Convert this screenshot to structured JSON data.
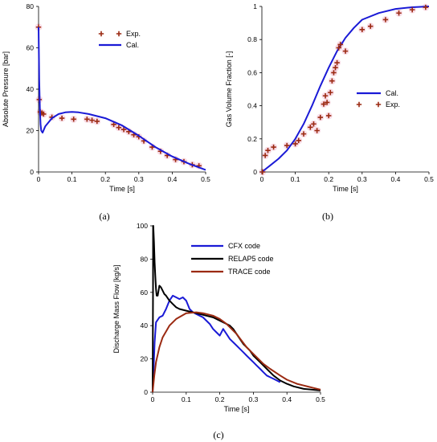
{
  "colors": {
    "cal": "#1a1ad6",
    "exp": "#9b2a12",
    "cfx": "#1a1ad6",
    "relap5": "#000000",
    "trace": "#9b2a12",
    "shade": "#f2bfd2"
  },
  "chart_data": [
    {
      "type": "line",
      "panel": "(a)",
      "xlabel": "Time [s]",
      "ylabel": "Absolute Pressure [bar]",
      "xlim": [
        0,
        0.5
      ],
      "ylim": [
        0,
        80
      ],
      "xticks": [
        0,
        0.1,
        0.2,
        0.3,
        0.4,
        0.5
      ],
      "yticks": [
        0,
        20,
        40,
        60,
        80
      ],
      "legend_position": "top-right",
      "series": [
        {
          "name": "Exp.",
          "kind": "markers",
          "x": [
            0.0,
            0.002,
            0.005,
            0.01,
            0.015,
            0.04,
            0.07,
            0.105,
            0.145,
            0.16,
            0.175,
            0.225,
            0.24,
            0.255,
            0.27,
            0.285,
            0.3,
            0.315,
            0.34,
            0.365,
            0.385,
            0.41,
            0.435,
            0.46,
            0.48
          ],
          "y": [
            70,
            35,
            29,
            28.5,
            28,
            26.5,
            26,
            25.5,
            25.5,
            25,
            24.5,
            23,
            21.5,
            20.5,
            19.5,
            18,
            17,
            15,
            12,
            10,
            8,
            6,
            5,
            3.5,
            3
          ]
        },
        {
          "name": "Cal.",
          "kind": "line",
          "x": [
            0.0,
            0.002,
            0.004,
            0.006,
            0.008,
            0.012,
            0.02,
            0.04,
            0.06,
            0.08,
            0.1,
            0.12,
            0.15,
            0.2,
            0.25,
            0.3,
            0.35,
            0.4,
            0.45,
            0.5
          ],
          "y": [
            70,
            45,
            30,
            23,
            20,
            19,
            22,
            26,
            28,
            28.8,
            29,
            28.8,
            28,
            26,
            22.5,
            17.5,
            12,
            7.5,
            4,
            1
          ]
        }
      ]
    },
    {
      "type": "line",
      "panel": "(b)",
      "xlabel": "Time [s]",
      "ylabel": "Gas Volume Fraction [-]",
      "xlim": [
        0,
        0.5
      ],
      "ylim": [
        0,
        1
      ],
      "xticks": [
        0,
        0.1,
        0.2,
        0.3,
        0.4,
        0.5
      ],
      "yticks": [
        0,
        0.2,
        0.4,
        0.6,
        0.8,
        1
      ],
      "legend_position": "middle-right",
      "series": [
        {
          "name": "Cal.",
          "kind": "line",
          "x": [
            0.0,
            0.025,
            0.05,
            0.075,
            0.1,
            0.125,
            0.15,
            0.175,
            0.2,
            0.225,
            0.25,
            0.275,
            0.3,
            0.35,
            0.4,
            0.45,
            0.5
          ],
          "y": [
            0.0,
            0.04,
            0.08,
            0.13,
            0.2,
            0.29,
            0.4,
            0.52,
            0.63,
            0.73,
            0.81,
            0.87,
            0.92,
            0.96,
            0.985,
            0.995,
            1.0
          ]
        },
        {
          "name": "Exp.",
          "kind": "markers",
          "x": [
            0.002,
            0.01,
            0.018,
            0.035,
            0.075,
            0.1,
            0.11,
            0.125,
            0.145,
            0.155,
            0.165,
            0.175,
            0.185,
            0.19,
            0.195,
            0.2,
            0.205,
            0.21,
            0.215,
            0.22,
            0.225,
            0.23,
            0.235,
            0.25,
            0.3,
            0.325,
            0.37,
            0.41,
            0.45,
            0.49
          ],
          "y": [
            0.0,
            0.1,
            0.13,
            0.15,
            0.16,
            0.17,
            0.19,
            0.23,
            0.27,
            0.29,
            0.25,
            0.33,
            0.41,
            0.46,
            0.42,
            0.34,
            0.48,
            0.55,
            0.6,
            0.63,
            0.66,
            0.75,
            0.77,
            0.73,
            0.86,
            0.88,
            0.92,
            0.96,
            0.98,
            0.995
          ]
        }
      ]
    },
    {
      "type": "line",
      "panel": "(c)",
      "xlabel": "Time [s]",
      "ylabel": "Discharge Mass Flow [kg/s]",
      "xlim": [
        0,
        0.5
      ],
      "ylim": [
        0,
        100
      ],
      "xticks": [
        0,
        0.1,
        0.2,
        0.3,
        0.4,
        0.5
      ],
      "yticks": [
        0,
        20,
        40,
        60,
        80,
        100
      ],
      "legend_position": "top-right",
      "series": [
        {
          "name": "CFX code",
          "x": [
            0.0,
            0.003,
            0.006,
            0.01,
            0.02,
            0.03,
            0.04,
            0.05,
            0.06,
            0.07,
            0.08,
            0.09,
            0.1,
            0.11,
            0.12,
            0.13,
            0.14,
            0.15,
            0.16,
            0.17,
            0.18,
            0.19,
            0.2,
            0.21,
            0.22,
            0.23,
            0.24,
            0.25,
            0.26,
            0.27,
            0.28,
            0.29,
            0.3,
            0.31,
            0.32,
            0.33,
            0.34,
            0.35,
            0.36,
            0.37,
            0.38
          ],
          "y": [
            0,
            15,
            30,
            42,
            45,
            46,
            50,
            55,
            58,
            57,
            56,
            57,
            55,
            50,
            48,
            47,
            46,
            45,
            43,
            41,
            38,
            36,
            34,
            38,
            35,
            32,
            30,
            28,
            26,
            24,
            22,
            20,
            18,
            16,
            14,
            12,
            10,
            9,
            8,
            7,
            6
          ]
        },
        {
          "name": "RELAP5 code",
          "x": [
            0.0,
            0.002,
            0.004,
            0.006,
            0.008,
            0.01,
            0.012,
            0.015,
            0.02,
            0.025,
            0.03,
            0.035,
            0.04,
            0.05,
            0.06,
            0.07,
            0.08,
            0.1,
            0.12,
            0.14,
            0.16,
            0.18,
            0.2,
            0.22,
            0.23,
            0.24,
            0.25,
            0.26,
            0.27,
            0.28,
            0.29,
            0.3,
            0.32,
            0.34,
            0.36,
            0.38,
            0.4,
            0.42,
            0.45,
            0.5
          ],
          "y": [
            0,
            100,
            90,
            78,
            70,
            62,
            58,
            58,
            64,
            63,
            61,
            59,
            58,
            55,
            53,
            51,
            50,
            49,
            48,
            47,
            46,
            45,
            43,
            41,
            40,
            38,
            35,
            32,
            29,
            27,
            25,
            22,
            18,
            14,
            10,
            7,
            5,
            3.5,
            2,
            1
          ]
        },
        {
          "name": "TRACE code",
          "x": [
            0.0,
            0.005,
            0.01,
            0.02,
            0.03,
            0.05,
            0.07,
            0.1,
            0.13,
            0.15,
            0.18,
            0.2,
            0.22,
            0.25,
            0.28,
            0.3,
            0.33,
            0.35,
            0.38,
            0.4,
            0.43,
            0.45,
            0.48,
            0.5
          ],
          "y": [
            0,
            10,
            18,
            27,
            33,
            40,
            44,
            47.5,
            48,
            47.5,
            46,
            44,
            41,
            35,
            27,
            23,
            17,
            14,
            10,
            7.5,
            5,
            4,
            2.5,
            1.5
          ]
        }
      ]
    }
  ]
}
